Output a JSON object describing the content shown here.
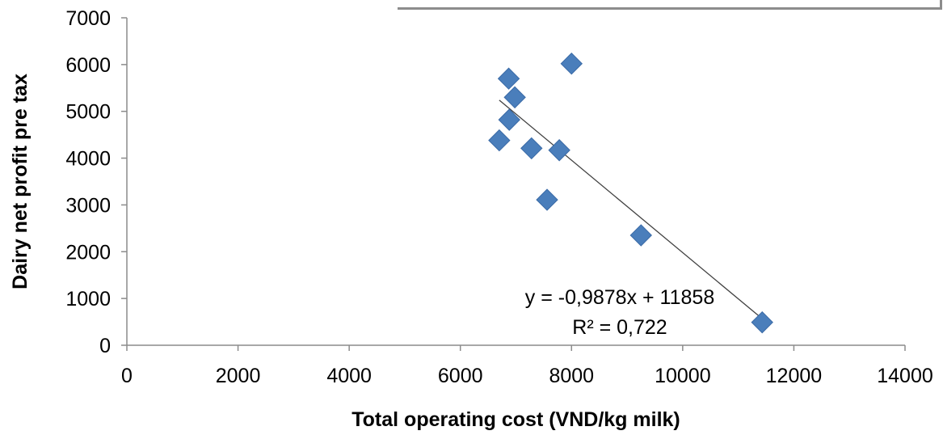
{
  "chart_data": {
    "type": "scatter",
    "xlabel": "Total operating cost (VND/kg milk)",
    "ylabel": "Dairy net profit pre tax",
    "xlim": [
      0,
      14000
    ],
    "ylim": [
      0,
      7000
    ],
    "x_ticks": [
      "0",
      "2000",
      "4000",
      "6000",
      "8000",
      "10000",
      "12000",
      "14000"
    ],
    "y_ticks": [
      "0",
      "1000",
      "2000",
      "3000",
      "4000",
      "5000",
      "6000",
      "7000"
    ],
    "grid": false,
    "series": [
      {
        "marker": "diamond",
        "color": "#4a7ebb",
        "points": [
          {
            "x": 6700,
            "y": 4380
          },
          {
            "x": 6870,
            "y": 5700
          },
          {
            "x": 6880,
            "y": 4820
          },
          {
            "x": 6980,
            "y": 5300
          },
          {
            "x": 7280,
            "y": 4210
          },
          {
            "x": 7560,
            "y": 3110
          },
          {
            "x": 7780,
            "y": 4170
          },
          {
            "x": 8000,
            "y": 6020
          },
          {
            "x": 9250,
            "y": 2350
          },
          {
            "x": 11430,
            "y": 490
          }
        ]
      }
    ],
    "trendline": {
      "type": "linear",
      "slope": -0.9878,
      "intercept": 11858,
      "x_range": [
        6700,
        11430
      ],
      "color": "#404040"
    },
    "annotations": {
      "equation": "y = -0,9878x + 11858",
      "r_squared": "R² = 0,722"
    }
  }
}
